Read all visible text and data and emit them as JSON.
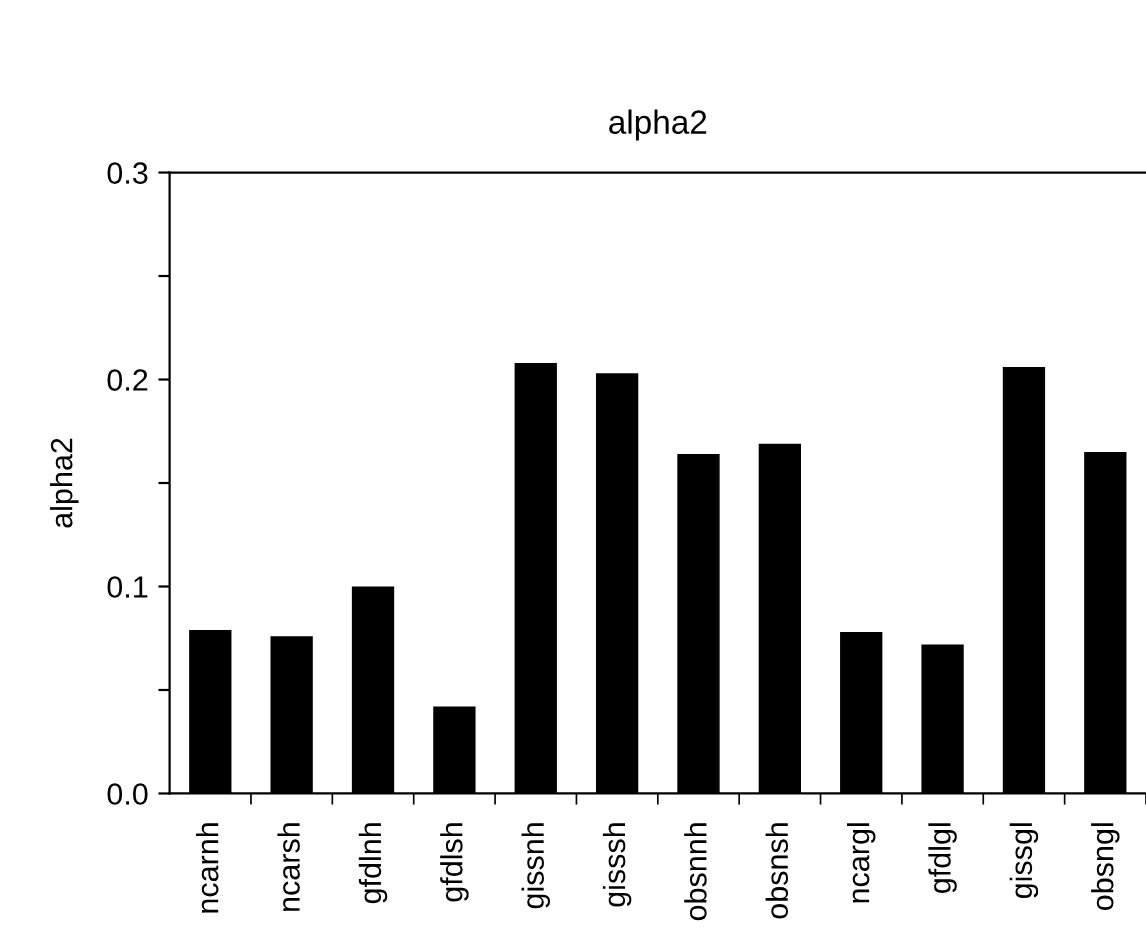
{
  "chart_data": {
    "type": "bar",
    "title": "alpha2",
    "ylabel": "alpha2",
    "categories": [
      "ncarnh",
      "ncarsh",
      "gfdlnh",
      "gfdlsh",
      "gissnh",
      "gisssh",
      "obsnnh",
      "obsnsh",
      "ncargl",
      "gfdlgl",
      "gissgl",
      "obsngl"
    ],
    "values": [
      0.079,
      0.076,
      0.1,
      0.042,
      0.208,
      0.203,
      0.164,
      0.169,
      0.078,
      0.072,
      0.206,
      0.165
    ],
    "color": "#000000",
    "ylim": [
      0,
      0.3
    ],
    "yticks": [
      {
        "value": 0,
        "label": "0.0"
      },
      {
        "value": 0.05,
        "label": null
      },
      {
        "value": 0.1,
        "label": "0.1"
      },
      {
        "value": 0.15,
        "label": null
      },
      {
        "value": 0.2,
        "label": "0.2"
      },
      {
        "value": 0.25,
        "label": null
      },
      {
        "value": 0.3,
        "label": "0.3"
      }
    ],
    "grid": false
  }
}
